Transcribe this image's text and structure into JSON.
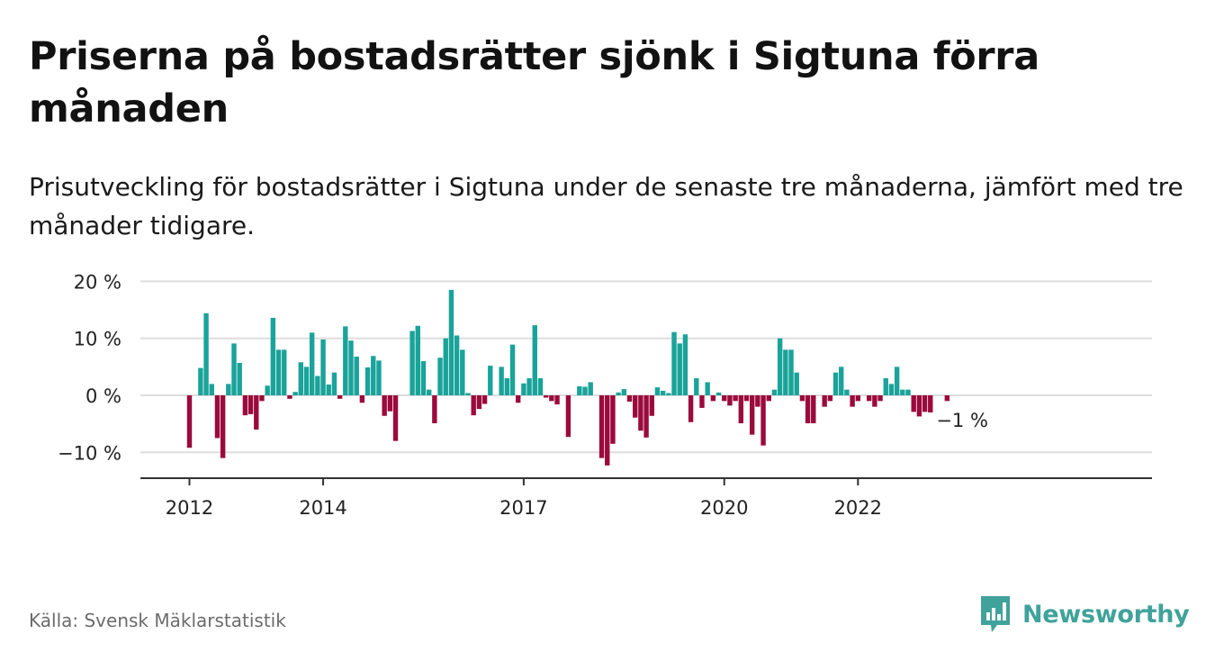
{
  "header": {
    "title": "Priserna på bostadsrätter sjönk i Sigtuna förra månaden",
    "subtitle": "Prisutveckling för bostadsrätter i Sigtuna under de senaste tre månaderna, jämfört med tre månader tidigare."
  },
  "footer": {
    "source": "Källa: Svensk Mäklarstatistik",
    "brand": "Newsworthy",
    "brand_icon": "newsworthy-logo-icon"
  },
  "colors": {
    "positive": "#1aa39a",
    "negative": "#9b0a3c",
    "grid": "#dddddd",
    "axis": "#333333",
    "brand": "#40a29b"
  },
  "chart_data": {
    "type": "bar",
    "y_unit": "%",
    "ylim": [
      -14,
      20
    ],
    "y_ticks": [
      -10,
      0,
      10,
      20
    ],
    "y_tick_labels": [
      "−10 %",
      "0 %",
      "10 %",
      "20 %"
    ],
    "x_tick_labels": [
      {
        "date": "2012-01",
        "label": "2012"
      },
      {
        "date": "2014-01",
        "label": "2014"
      },
      {
        "date": "2017-01",
        "label": "2017"
      },
      {
        "date": "2020-01",
        "label": "2020"
      },
      {
        "date": "2022-01",
        "label": "2022"
      }
    ],
    "grid": true,
    "legend": "none",
    "last_value_label": "−1 %",
    "start_date": "2012-01",
    "values": [
      -9.2,
      0,
      4.8,
      14.4,
      2.0,
      -7.5,
      -11.0,
      2.0,
      9.1,
      5.7,
      -3.5,
      -3.3,
      -6.0,
      -1.0,
      1.7,
      13.6,
      8.0,
      8.0,
      -0.6,
      0.6,
      5.8,
      5.0,
      11.0,
      3.4,
      9.8,
      1.9,
      4.0,
      -0.6,
      12.1,
      9.6,
      6.8,
      -1.3,
      4.9,
      6.9,
      6.1,
      -3.6,
      -2.8,
      -8.0,
      0,
      0,
      11.3,
      12.2,
      6.0,
      1.0,
      -4.9,
      6.6,
      10.0,
      18.5,
      10.5,
      8.0,
      0.4,
      -3.5,
      -2.4,
      -1.5,
      5.2,
      0,
      5.0,
      3.0,
      8.9,
      -1.3,
      2.1,
      3.0,
      12.3,
      3.0,
      -0.4,
      -1.0,
      -1.6,
      0,
      -7.3,
      0,
      1.6,
      1.5,
      2.3,
      0,
      -11.0,
      -12.3,
      -8.5,
      0.5,
      1.1,
      -1.1,
      -3.9,
      -6.2,
      -7.4,
      -3.6,
      1.4,
      0.8,
      0.4,
      11.1,
      9.1,
      10.7,
      -4.7,
      3.0,
      -2.2,
      2.3,
      -1.0,
      0.5,
      -1.0,
      -1.8,
      -1.0,
      -4.9,
      -1.0,
      -6.9,
      -2.0,
      -8.8,
      -1.0,
      1.0,
      10.0,
      8.0,
      8.0,
      4.0,
      -1.0,
      -4.9,
      -4.9,
      0,
      -2.0,
      -1.0,
      4.0,
      5.0,
      1.0,
      -2.0,
      -1.0,
      0,
      -1.0,
      -2.0,
      -1.0,
      3.0,
      2.0,
      5.0,
      1.0,
      1.0,
      -2.9,
      -3.7,
      -2.9,
      -3.0,
      0,
      0,
      -1.0
    ]
  }
}
